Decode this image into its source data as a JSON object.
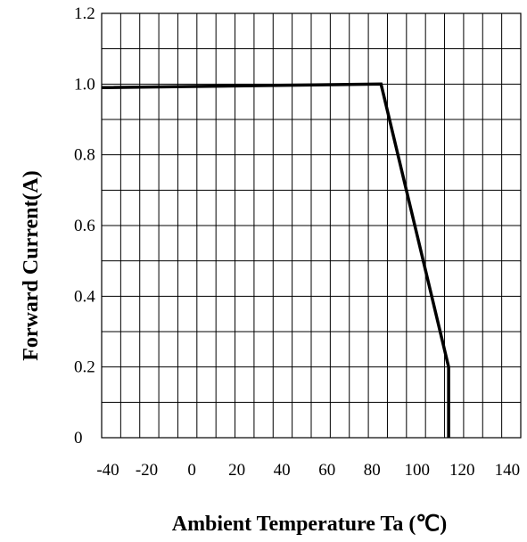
{
  "chart_data": {
    "type": "line",
    "title": "",
    "xlabel": "Ambient Temperature Ta (℃)",
    "ylabel": "Forward Current(A)",
    "xlim": [
      -40,
      146
    ],
    "ylim": [
      0,
      1.2
    ],
    "grid": true,
    "x_ticks": [
      -40,
      -20,
      0,
      20,
      40,
      60,
      80,
      100,
      120,
      140
    ],
    "x_tick_labels": [
      "-40",
      "-20",
      "0",
      "20",
      "40",
      "60",
      "80",
      "100",
      "120",
      "140"
    ],
    "y_ticks": [
      0,
      0.2,
      0.4,
      0.6,
      0.8,
      1.0,
      1.2
    ],
    "y_tick_labels": [
      "0",
      "0.2",
      "0.4",
      "0.6",
      "0.8",
      "1.0",
      "1.2"
    ],
    "series": [
      {
        "x": [
          -40,
          84,
          114,
          114
        ],
        "y": [
          0.99,
          1.0,
          0.2,
          0.0
        ]
      }
    ]
  }
}
